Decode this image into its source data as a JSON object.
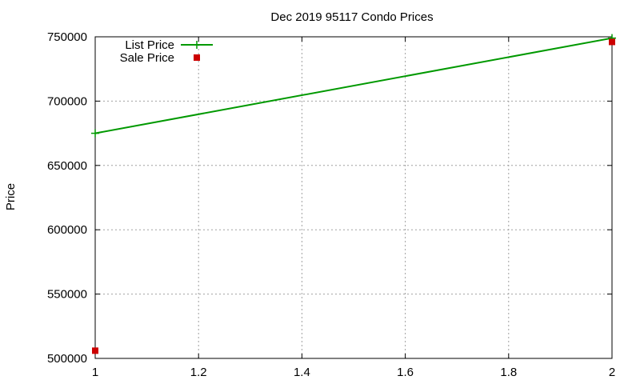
{
  "chart_data": {
    "type": "line",
    "title": "Dec 2019 95117 Condo Prices",
    "xlabel": "",
    "ylabel": "Price",
    "xlim": [
      1,
      2
    ],
    "ylim": [
      500000,
      750000
    ],
    "xticks": [
      1,
      1.2,
      1.4,
      1.6,
      1.8,
      2
    ],
    "yticks": [
      500000,
      550000,
      600000,
      650000,
      700000,
      750000
    ],
    "grid": true,
    "legend_position": "top-left",
    "series": [
      {
        "name": "List Price",
        "style": "linespoints",
        "color": "#009900",
        "marker": "plus",
        "points": [
          {
            "x": 1,
            "y": 675000
          },
          {
            "x": 2,
            "y": 749000
          }
        ]
      },
      {
        "name": "Sale Price",
        "style": "points",
        "color": "#cc0000",
        "marker": "square",
        "points": [
          {
            "x": 1,
            "y": 506000
          },
          {
            "x": 2,
            "y": 746000
          }
        ]
      }
    ]
  }
}
